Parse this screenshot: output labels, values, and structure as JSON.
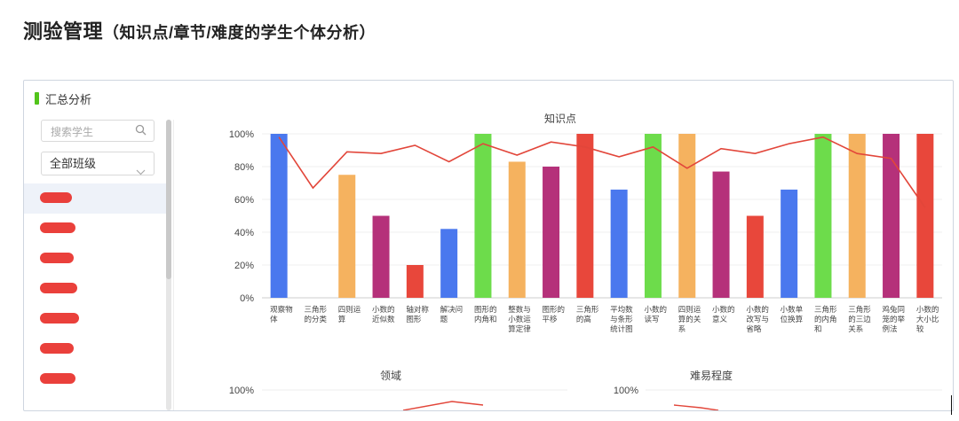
{
  "page": {
    "title": "测验管理",
    "subtitle": "（知识点/章节/难度的学生个体分析）"
  },
  "panel": {
    "header": "汇总分析"
  },
  "sidebar": {
    "search_placeholder": "搜索学生",
    "class_select": "全部班级",
    "students": [
      {
        "label": "",
        "redacted": true,
        "active": true
      },
      {
        "label": "",
        "redacted": true
      },
      {
        "label": "",
        "redacted": true
      },
      {
        "label": "",
        "redacted": true
      },
      {
        "label": "",
        "redacted": true
      },
      {
        "label": "",
        "redacted": true
      },
      {
        "label": "",
        "redacted": true
      }
    ]
  },
  "colors": {
    "accent": "#52c41a",
    "blue": "#4a78ee",
    "green": "#6ddc4b",
    "orange": "#f5b25f",
    "purple": "#b5317a",
    "red": "#e8473b",
    "line": "#e2463a"
  },
  "chart_data": [
    {
      "type": "bar",
      "title": "知识点",
      "ylim": [
        0,
        100
      ],
      "yticks": [
        "0%",
        "20%",
        "40%",
        "60%",
        "80%",
        "100%"
      ],
      "categories": [
        [
          "观察物",
          "体"
        ],
        [
          "三角形",
          "的分类"
        ],
        [
          "四则运",
          "算"
        ],
        [
          "小数的",
          "近似数"
        ],
        [
          "轴对称",
          "图形"
        ],
        [
          "解决问",
          "题"
        ],
        [
          "图形的",
          "内角和"
        ],
        [
          "整数与",
          "小数运",
          "算定律"
        ],
        [
          "图形的",
          "平移"
        ],
        [
          "三角形",
          "的高"
        ],
        [
          "平均数",
          "与条形",
          "统计图"
        ],
        [
          "小数的",
          "读写"
        ],
        [
          "四则运",
          "算的关",
          "系"
        ],
        [
          "小数的",
          "意义"
        ],
        [
          "小数的",
          "改写与",
          "省略"
        ],
        [
          "小数单",
          "位换算"
        ],
        [
          "三角形",
          "的内角",
          "和"
        ],
        [
          "三角形",
          "的三边",
          "关系"
        ],
        [
          "鸡兔同",
          "笼的举",
          "例法"
        ],
        [
          "小数的",
          "大小比",
          "较"
        ]
      ],
      "series": [
        {
          "type": "bar",
          "values": [
            100,
            0,
            75,
            50,
            20,
            42,
            100,
            83,
            80,
            100,
            66,
            100,
            100,
            77,
            50,
            66,
            100,
            100,
            100,
            100
          ],
          "colors": [
            "blue",
            "blue",
            "orange",
            "purple",
            "red",
            "blue",
            "green",
            "orange",
            "purple",
            "red",
            "blue",
            "green",
            "orange",
            "purple",
            "red",
            "blue",
            "green",
            "orange",
            "purple",
            "red"
          ]
        },
        {
          "type": "line",
          "values": [
            98,
            67,
            89,
            88,
            93,
            83,
            94,
            87,
            95,
            92,
            86,
            92,
            79,
            91,
            88,
            94,
            98,
            88,
            85,
            55
          ]
        }
      ]
    },
    {
      "type": "line",
      "title": "领域",
      "ylim": [
        0,
        100
      ],
      "yticks": [
        "100%"
      ],
      "series": []
    },
    {
      "type": "line",
      "title": "难易程度",
      "ylim": [
        0,
        100
      ],
      "yticks": [
        "100%"
      ],
      "series": []
    }
  ]
}
